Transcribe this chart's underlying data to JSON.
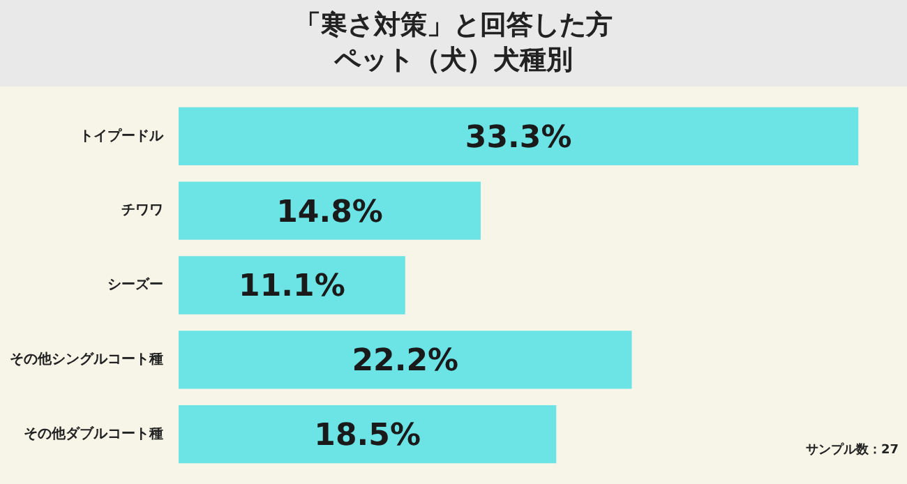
{
  "chart_data": {
    "type": "bar",
    "orientation": "horizontal",
    "title": "「寒さ対策」と回答した方",
    "subtitle": "ペット（犬）犬種別",
    "categories": [
      "トイプードル",
      "チワワ",
      "シーズー",
      "その他シングルコート種",
      "その他ダブルコート種"
    ],
    "values": [
      33.3,
      14.8,
      11.1,
      22.2,
      18.5
    ],
    "value_labels": [
      "33.3%",
      "14.8%",
      "11.1%",
      "22.2%",
      "18.5%"
    ],
    "color": "#6ce4e6",
    "annotations": [
      "サンプル数：27"
    ]
  }
}
